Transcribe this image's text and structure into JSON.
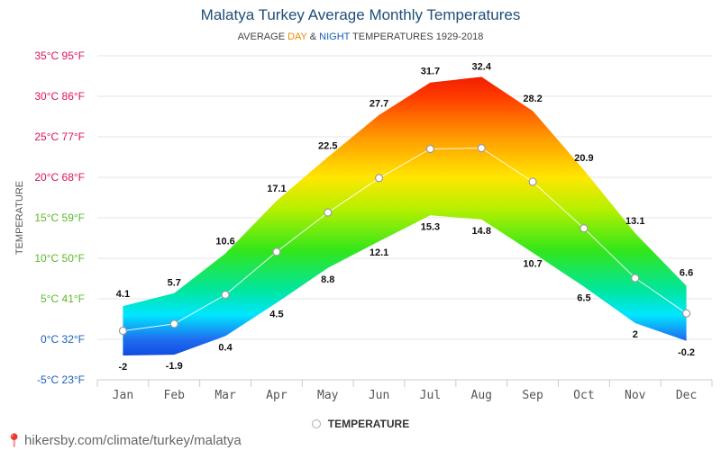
{
  "header": {
    "title": "Malatya Turkey Average Monthly Temperatures",
    "subtitle_prefix": "AVERAGE ",
    "subtitle_day": "DAY",
    "subtitle_and": " & ",
    "subtitle_night": "NIGHT",
    "subtitle_suffix": " TEMPERATURES 1929-2018"
  },
  "legend": {
    "label": "TEMPERATURE"
  },
  "footer": {
    "url": "hikersby.com/climate/turkey/malatya"
  },
  "chart_data": {
    "type": "area",
    "title": "Malatya Turkey Average Monthly Temperatures",
    "subtitle": "AVERAGE DAY & NIGHT TEMPERATURES 1929-2018",
    "ylabel": "TEMPERATURE",
    "xlabel": "",
    "categories": [
      "Jan",
      "Feb",
      "Mar",
      "Apr",
      "May",
      "Jun",
      "Jul",
      "Aug",
      "Sep",
      "Oct",
      "Nov",
      "Dec"
    ],
    "series": [
      {
        "name": "DAY",
        "values": [
          4.1,
          5.7,
          10.6,
          17.1,
          22.5,
          27.7,
          31.7,
          32.4,
          28.2,
          20.9,
          13.1,
          6.6
        ]
      },
      {
        "name": "NIGHT",
        "values": [
          -2,
          -1.9,
          0.4,
          4.5,
          8.8,
          12.1,
          15.3,
          14.8,
          10.7,
          6.5,
          2,
          -0.2
        ]
      },
      {
        "name": "TEMPERATURE",
        "values": [
          1.05,
          1.9,
          5.5,
          10.8,
          15.65,
          19.9,
          23.5,
          23.6,
          19.45,
          13.7,
          7.55,
          3.2
        ]
      }
    ],
    "ylim": [
      -5,
      35
    ],
    "yticks": [
      {
        "value": 35,
        "label": "35°C 95°F",
        "color": "#e0115f"
      },
      {
        "value": 30,
        "label": "30°C 86°F",
        "color": "#e0115f"
      },
      {
        "value": 25,
        "label": "25°C 77°F",
        "color": "#e0115f"
      },
      {
        "value": 20,
        "label": "20°C 68°F",
        "color": "#e0115f"
      },
      {
        "value": 15,
        "label": "15°C 59°F",
        "color": "#5cb82a"
      },
      {
        "value": 10,
        "label": "10°C 50°F",
        "color": "#5cb82a"
      },
      {
        "value": 5,
        "label": "5°C 41°F",
        "color": "#5cb82a"
      },
      {
        "value": 0,
        "label": "0°C 32°F",
        "color": "#1a5fb4"
      },
      {
        "value": -5,
        "label": "-5°C 23°F",
        "color": "#1a5fb4"
      }
    ],
    "day_labels": [
      "4.1",
      "5.7",
      "10.6",
      "17.1",
      "22.5",
      "27.7",
      "31.7",
      "32.4",
      "28.2",
      "20.9",
      "13.1",
      "6.6"
    ],
    "night_labels": [
      "-2",
      "-1.9",
      "0.4",
      "4.5",
      "8.8",
      "12.1",
      "15.3",
      "14.8",
      "10.7",
      "6.5",
      "2",
      "-0.2"
    ],
    "grid": true,
    "legend_position": "bottom"
  }
}
